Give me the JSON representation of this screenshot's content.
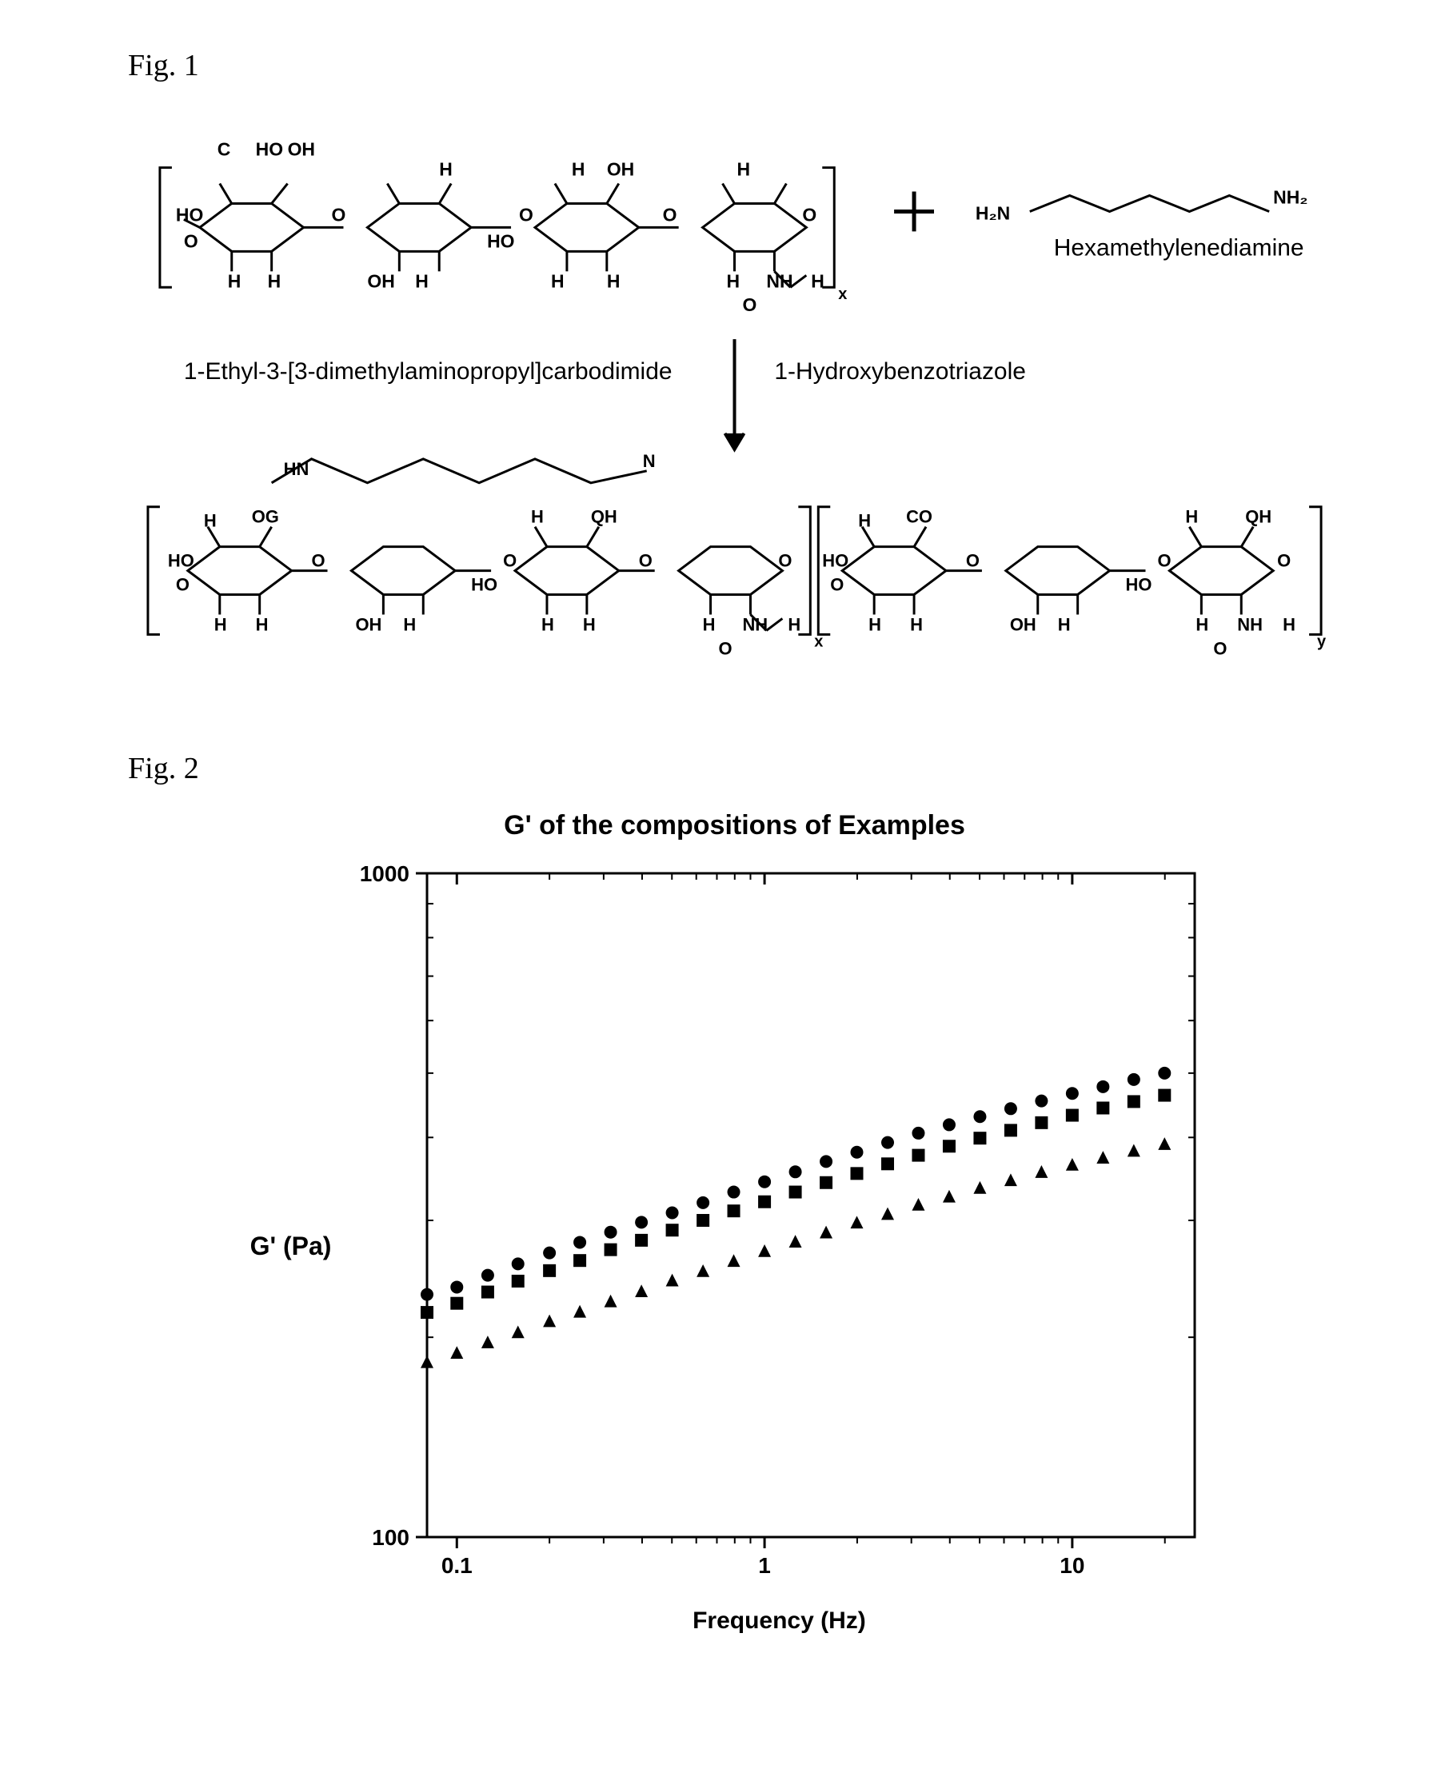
{
  "fig1": {
    "label": "Fig. 1",
    "reagent_left": "1-Ethyl-3-[3-dimethylaminopropyl]carbodimide",
    "reagent_right": "1-Hydroxybenzotriazole",
    "reactant_name": "Hexamethylenediamine",
    "text_color": "#000000",
    "font_size_label": 38,
    "font_size_text": 28
  },
  "fig2": {
    "label": "Fig. 2",
    "chart": {
      "type": "scatter",
      "title": "G' of the compositions of Examples",
      "title_fontsize": 34,
      "xlabel": "Frequency (Hz)",
      "ylabel": "G' (Pa)",
      "label_fontsize": 30,
      "xscale": "log",
      "yscale": "log",
      "xlim": [
        0.08,
        25
      ],
      "ylim": [
        100,
        1000
      ],
      "xticks": [
        0.1,
        1,
        10
      ],
      "yticks": [
        100,
        1000
      ],
      "axis_color": "#000000",
      "background_color": "#ffffff",
      "marker_size": 16,
      "marker_color": "#000000",
      "series": [
        {
          "marker": "circle",
          "x": [
            0.08,
            0.1,
            0.126,
            0.158,
            0.2,
            0.251,
            0.316,
            0.398,
            0.501,
            0.631,
            0.794,
            1.0,
            1.259,
            1.585,
            1.995,
            2.512,
            3.162,
            3.981,
            5.012,
            6.31,
            7.943,
            10.0,
            12.589,
            15.849,
            19.95
          ],
          "y": [
            232,
            238,
            248,
            258,
            268,
            278,
            288,
            298,
            308,
            319,
            331,
            343,
            355,
            368,
            380,
            393,
            406,
            418,
            430,
            442,
            454,
            466,
            477,
            489,
            500
          ]
        },
        {
          "marker": "square",
          "x": [
            0.08,
            0.1,
            0.126,
            0.158,
            0.2,
            0.251,
            0.316,
            0.398,
            0.501,
            0.631,
            0.794,
            1.0,
            1.259,
            1.585,
            1.995,
            2.512,
            3.162,
            3.981,
            5.012,
            6.31,
            7.943,
            10.0,
            12.589,
            15.849,
            19.95
          ],
          "y": [
            218,
            225,
            234,
            243,
            252,
            261,
            271,
            280,
            290,
            300,
            310,
            320,
            331,
            342,
            353,
            365,
            376,
            388,
            399,
            410,
            421,
            432,
            443,
            453,
            463
          ]
        },
        {
          "marker": "triangle",
          "x": [
            0.08,
            0.1,
            0.126,
            0.158,
            0.2,
            0.251,
            0.316,
            0.398,
            0.501,
            0.631,
            0.794,
            1.0,
            1.259,
            1.585,
            1.995,
            2.512,
            3.162,
            3.981,
            5.012,
            6.31,
            7.943,
            10.0,
            12.589,
            15.849,
            19.95
          ],
          "y": [
            183,
            189,
            196,
            203,
            211,
            218,
            226,
            234,
            243,
            251,
            260,
            269,
            278,
            287,
            297,
            306,
            316,
            325,
            335,
            344,
            354,
            363,
            372,
            381,
            390
          ]
        }
      ]
    }
  }
}
